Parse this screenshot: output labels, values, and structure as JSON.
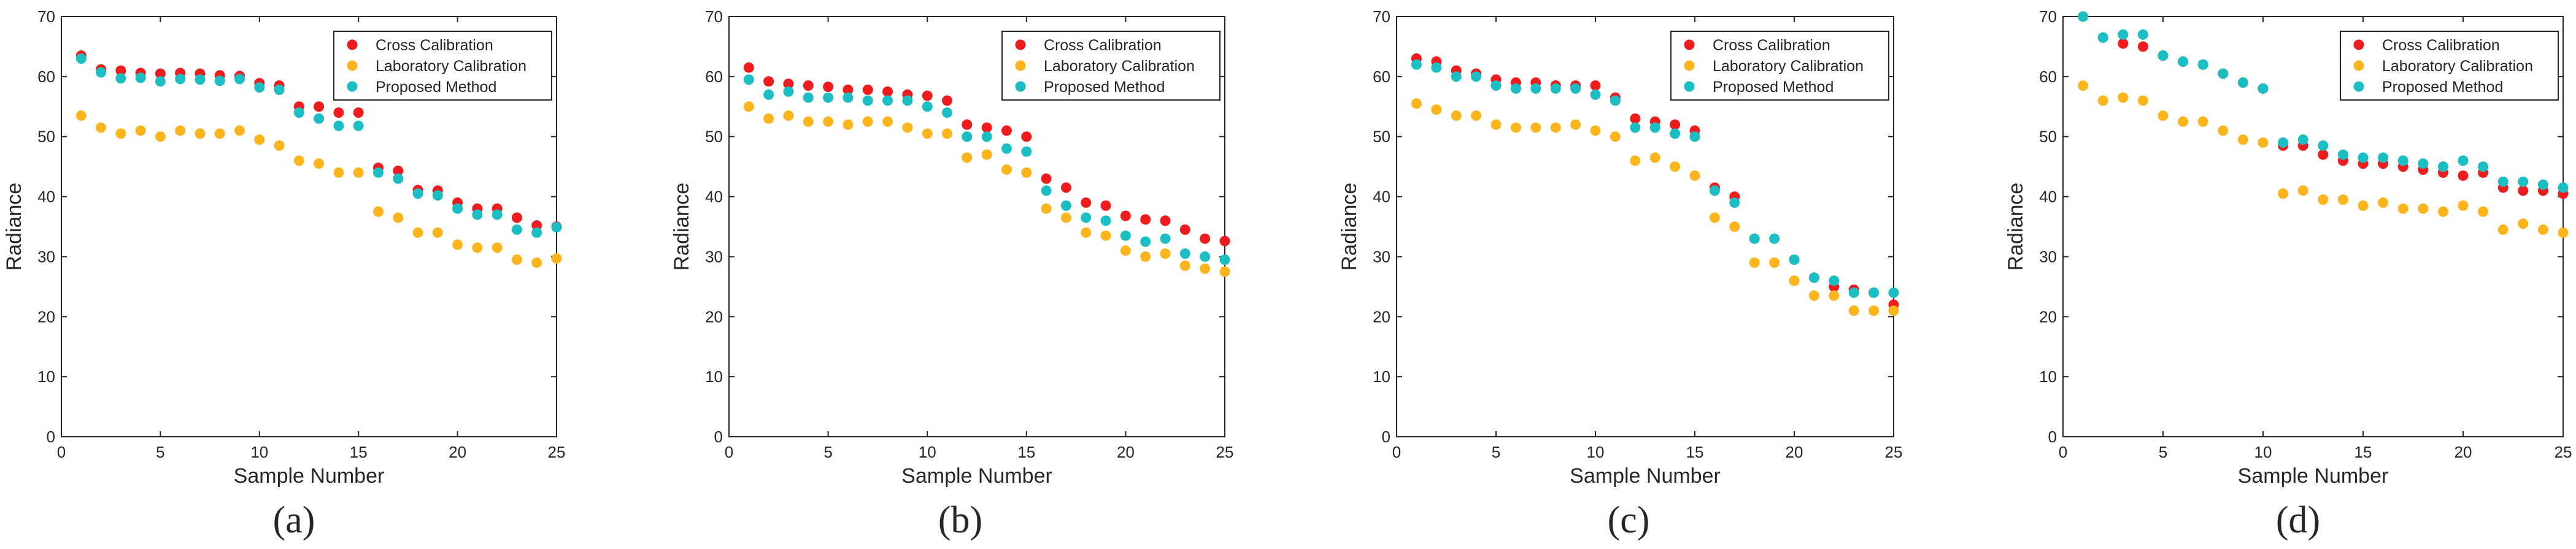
{
  "figure": {
    "panel_labels": [
      "(a)",
      "(b)",
      "(c)",
      "(d)"
    ],
    "colors": {
      "cross": "#ee1c1c",
      "lab": "#fcb51c",
      "proposed": "#1bbec2",
      "axis": "#262626",
      "legend_border": "#262626"
    }
  },
  "chart_data": [
    {
      "type": "scatter",
      "panel": "(a)",
      "xlabel": "Sample Number",
      "ylabel": "Radiance",
      "xlim": [
        0,
        25
      ],
      "ylim": [
        0,
        70
      ],
      "xticks": [
        0,
        5,
        10,
        15,
        20,
        25
      ],
      "yticks": [
        0,
        10,
        20,
        30,
        40,
        50,
        60,
        70
      ],
      "legend_position": "top-right",
      "x": [
        1,
        2,
        3,
        4,
        5,
        6,
        7,
        8,
        9,
        10,
        11,
        12,
        13,
        14,
        15,
        16,
        17,
        18,
        19,
        20,
        21,
        22,
        23,
        24,
        25
      ],
      "series": [
        {
          "name": "Cross Calibration",
          "color": "#ee1c1c",
          "values": [
            63.5,
            61.2,
            61.0,
            60.6,
            60.5,
            60.6,
            60.5,
            60.2,
            60.1,
            58.9,
            58.5,
            55.0,
            55.0,
            54.0,
            54.0,
            44.8,
            44.3,
            41.1,
            41.0,
            39.0,
            38.0,
            38.0,
            36.5,
            35.2,
            35.0
          ]
        },
        {
          "name": "Laboratory Calibration",
          "color": "#fcb51c",
          "values": [
            53.5,
            51.5,
            50.5,
            51.0,
            50.0,
            51.0,
            50.5,
            50.5,
            51.0,
            49.5,
            48.5,
            46.0,
            45.5,
            44.0,
            44.0,
            37.5,
            36.5,
            34.0,
            34.0,
            32.0,
            31.5,
            31.5,
            29.5,
            29.0,
            29.7
          ]
        },
        {
          "name": "Proposed Method",
          "color": "#1bbec2",
          "values": [
            63.0,
            60.7,
            59.7,
            59.8,
            59.2,
            59.6,
            59.5,
            59.3,
            59.6,
            58.2,
            57.8,
            54.0,
            53.0,
            51.8,
            51.8,
            44.0,
            43.0,
            40.5,
            40.2,
            38.0,
            37.0,
            37.0,
            34.5,
            34.0,
            34.9
          ]
        }
      ]
    },
    {
      "type": "scatter",
      "panel": "(b)",
      "xlabel": "Sample Number",
      "ylabel": "Radiance",
      "xlim": [
        0,
        25
      ],
      "ylim": [
        0,
        70
      ],
      "xticks": [
        0,
        5,
        10,
        15,
        20,
        25
      ],
      "yticks": [
        0,
        10,
        20,
        30,
        40,
        50,
        60,
        70
      ],
      "legend_position": "top-right",
      "x": [
        1,
        2,
        3,
        4,
        5,
        6,
        7,
        8,
        9,
        10,
        11,
        12,
        13,
        14,
        15,
        16,
        17,
        18,
        19,
        20,
        21,
        22,
        23,
        24,
        25
      ],
      "series": [
        {
          "name": "Cross Calibration",
          "color": "#ee1c1c",
          "values": [
            61.5,
            59.2,
            58.8,
            58.5,
            58.3,
            57.8,
            57.8,
            57.5,
            57.0,
            56.8,
            56.0,
            52.0,
            51.5,
            51.0,
            50.0,
            43.0,
            41.5,
            39.0,
            38.5,
            36.8,
            36.2,
            36.0,
            34.5,
            33.0,
            32.6
          ]
        },
        {
          "name": "Laboratory Calibration",
          "color": "#fcb51c",
          "values": [
            55.0,
            53.0,
            53.5,
            52.5,
            52.5,
            52.0,
            52.5,
            52.5,
            51.5,
            50.5,
            50.5,
            46.5,
            47.0,
            44.5,
            44.0,
            38.0,
            36.5,
            34.0,
            33.5,
            31.0,
            30.0,
            30.5,
            28.5,
            28.0,
            27.5
          ]
        },
        {
          "name": "Proposed Method",
          "color": "#1bbec2",
          "values": [
            59.5,
            57.0,
            57.5,
            56.5,
            56.5,
            56.5,
            56.0,
            56.0,
            56.0,
            55.0,
            54.0,
            50.0,
            50.0,
            48.0,
            47.5,
            41.0,
            38.5,
            36.5,
            36.0,
            33.5,
            32.5,
            33.0,
            30.5,
            30.0,
            29.5
          ]
        }
      ]
    },
    {
      "type": "scatter",
      "panel": "(c)",
      "xlabel": "Sample Number",
      "ylabel": "Radiance",
      "xlim": [
        0,
        25
      ],
      "ylim": [
        0,
        70
      ],
      "xticks": [
        0,
        5,
        10,
        15,
        20,
        25
      ],
      "yticks": [
        0,
        10,
        20,
        30,
        40,
        50,
        60,
        70
      ],
      "legend_position": "top-right",
      "x": [
        1,
        2,
        3,
        4,
        5,
        6,
        7,
        8,
        9,
        10,
        11,
        12,
        13,
        14,
        15,
        16,
        17,
        18,
        19,
        20,
        21,
        22,
        23,
        24,
        25
      ],
      "series": [
        {
          "name": "Cross Calibration",
          "color": "#ee1c1c",
          "values": [
            63.0,
            62.5,
            61.0,
            60.5,
            59.5,
            59.0,
            59.0,
            58.5,
            58.5,
            58.5,
            56.5,
            53.0,
            52.5,
            52.0,
            51.0,
            41.5,
            40.0,
            33.0,
            33.0,
            29.5,
            26.5,
            25.0,
            24.5,
            24.0,
            22.0
          ]
        },
        {
          "name": "Laboratory Calibration",
          "color": "#fcb51c",
          "values": [
            55.5,
            54.5,
            53.5,
            53.5,
            52.0,
            51.5,
            51.5,
            51.5,
            52.0,
            51.0,
            50.0,
            46.0,
            46.5,
            45.0,
            43.5,
            36.5,
            35.0,
            29.0,
            29.0,
            26.0,
            23.5,
            23.5,
            21.0,
            21.0,
            21.0
          ]
        },
        {
          "name": "Proposed Method",
          "color": "#1bbec2",
          "values": [
            62.0,
            61.5,
            60.0,
            60.0,
            58.5,
            58.0,
            58.0,
            58.0,
            58.0,
            57.0,
            56.0,
            51.5,
            51.5,
            50.5,
            50.0,
            41.0,
            39.0,
            33.0,
            33.0,
            29.5,
            26.5,
            26.0,
            24.0,
            24.0,
            24.0
          ]
        }
      ]
    },
    {
      "type": "scatter",
      "panel": "(d)",
      "xlabel": "Sample Number",
      "ylabel": "Radiance",
      "xlim": [
        0,
        25
      ],
      "ylim": [
        0,
        70
      ],
      "xticks": [
        0,
        5,
        10,
        15,
        20,
        25
      ],
      "yticks": [
        0,
        10,
        20,
        30,
        40,
        50,
        60,
        70
      ],
      "legend_position": "top-right",
      "x": [
        1,
        2,
        3,
        4,
        5,
        6,
        7,
        8,
        9,
        10,
        11,
        12,
        13,
        14,
        15,
        16,
        17,
        18,
        19,
        20,
        21,
        22,
        23,
        24,
        25
      ],
      "series": [
        {
          "name": "Cross Calibration",
          "color": "#ee1c1c",
          "values": [
            70.0,
            66.5,
            65.5,
            65.0,
            63.5,
            62.5,
            62.0,
            60.5,
            59.0,
            58.0,
            48.5,
            48.5,
            47.0,
            46.0,
            45.5,
            45.5,
            45.0,
            44.5,
            44.0,
            43.5,
            44.0,
            41.5,
            41.0,
            41.0,
            40.5
          ]
        },
        {
          "name": "Laboratory Calibration",
          "color": "#fcb51c",
          "values": [
            58.5,
            56.0,
            56.5,
            56.0,
            53.5,
            52.5,
            52.5,
            51.0,
            49.5,
            49.0,
            40.5,
            41.0,
            39.5,
            39.5,
            38.5,
            39.0,
            38.0,
            38.0,
            37.5,
            38.5,
            37.5,
            34.5,
            35.5,
            34.5,
            34.0
          ]
        },
        {
          "name": "Proposed Method",
          "color": "#1bbec2",
          "values": [
            70.0,
            66.5,
            67.0,
            67.0,
            63.5,
            62.5,
            62.0,
            60.5,
            59.0,
            58.0,
            49.0,
            49.5,
            48.5,
            47.0,
            46.5,
            46.5,
            46.0,
            45.5,
            45.0,
            46.0,
            45.0,
            42.5,
            42.5,
            42.0,
            41.5
          ]
        }
      ]
    }
  ]
}
